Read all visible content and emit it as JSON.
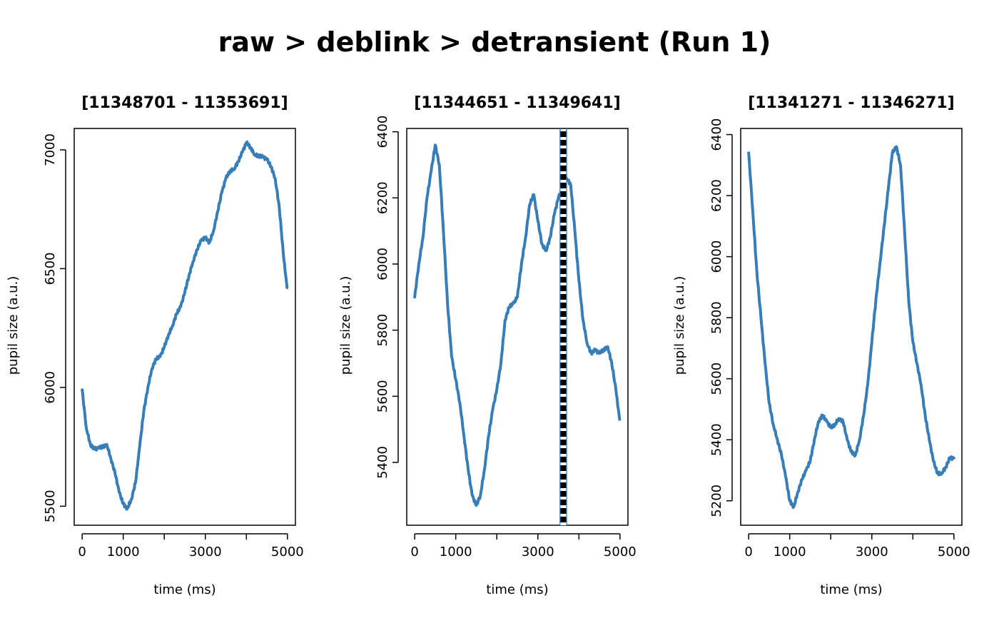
{
  "title": "raw > deblink > detransient (Run 1)",
  "colors": {
    "series": "#377EB8",
    "vline": "#000000",
    "vline_gap": "#ffffff"
  },
  "chart_data": [
    {
      "type": "line",
      "title": "[11348701 - 11353691]",
      "xlabel": "time (ms)",
      "ylabel": "pupil size (a.u.)",
      "xlim": [
        0,
        5000
      ],
      "ylim": [
        5420,
        7090
      ],
      "xticks": [
        0,
        1000,
        2000,
        3000,
        4000,
        5000
      ],
      "xtick_labels": [
        "0",
        "1000",
        "",
        "3000",
        "",
        "5000"
      ],
      "yticks": [
        5500,
        6000,
        6500,
        7000
      ],
      "ytick_labels": [
        "5500",
        "6000",
        "6500",
        "7000"
      ],
      "grid": false,
      "vlines": [],
      "series": [
        {
          "x": [
            0,
            100,
            200,
            300,
            400,
            500,
            600,
            700,
            800,
            900,
            1000,
            1100,
            1200,
            1300,
            1400,
            1500,
            1600,
            1700,
            1800,
            1900,
            2000,
            2100,
            2200,
            2300,
            2400,
            2500,
            2600,
            2700,
            2800,
            2900,
            3000,
            3100,
            3200,
            3300,
            3400,
            3500,
            3600,
            3700,
            3800,
            3900,
            4000,
            4100,
            4200,
            4300,
            4400,
            4500,
            4600,
            4700,
            4800,
            4900,
            4990
          ],
          "y": [
            5990,
            5830,
            5760,
            5740,
            5745,
            5750,
            5760,
            5700,
            5640,
            5560,
            5510,
            5490,
            5530,
            5600,
            5750,
            5900,
            6000,
            6080,
            6120,
            6130,
            6170,
            6220,
            6260,
            6310,
            6340,
            6400,
            6470,
            6530,
            6580,
            6620,
            6630,
            6610,
            6660,
            6740,
            6820,
            6880,
            6910,
            6920,
            6950,
            6990,
            7030,
            7010,
            6980,
            6975,
            6970,
            6960,
            6930,
            6880,
            6760,
            6560,
            6420
          ]
        }
      ]
    },
    {
      "type": "line",
      "title": "[11344651 - 11349641]",
      "xlabel": "time (ms)",
      "ylabel": "pupil size (a.u.)",
      "xlim": [
        0,
        5000
      ],
      "ylim": [
        5210,
        6410
      ],
      "xticks": [
        0,
        1000,
        2000,
        3000,
        4000,
        5000
      ],
      "xtick_labels": [
        "0",
        "1000",
        "",
        "3000",
        "",
        "5000"
      ],
      "yticks": [
        5400,
        5600,
        5800,
        6000,
        6200,
        6400
      ],
      "ytick_labels": [
        "5400",
        "5600",
        "5800",
        "6000",
        "6200",
        "6400"
      ],
      "grid": false,
      "vlines": [
        3620
      ],
      "series": [
        {
          "x": [
            0,
            100,
            200,
            300,
            400,
            500,
            600,
            700,
            800,
            900,
            1000,
            1100,
            1200,
            1300,
            1400,
            1500,
            1600,
            1700,
            1800,
            1900,
            2000,
            2100,
            2200,
            2300,
            2400,
            2500,
            2600,
            2700,
            2800,
            2900,
            3000,
            3100,
            3200,
            3300,
            3400,
            3500,
            3600,
            3700,
            3800,
            3900,
            4000,
            4100,
            4200,
            4300,
            4400,
            4500,
            4600,
            4700,
            4800,
            4900,
            4990
          ],
          "y": [
            5900,
            6000,
            6080,
            6200,
            6280,
            6360,
            6300,
            6100,
            5880,
            5720,
            5650,
            5580,
            5480,
            5380,
            5300,
            5270,
            5300,
            5380,
            5480,
            5560,
            5620,
            5700,
            5830,
            5870,
            5880,
            5900,
            6000,
            6080,
            6180,
            6210,
            6130,
            6060,
            6040,
            6080,
            6150,
            6200,
            6230,
            6260,
            6240,
            6100,
            5950,
            5830,
            5760,
            5730,
            5740,
            5730,
            5740,
            5750,
            5700,
            5620,
            5530
          ]
        }
      ]
    },
    {
      "type": "line",
      "title": "[11341271 - 11346271]",
      "xlabel": "time (ms)",
      "ylabel": "pupil size (a.u.)",
      "xlim": [
        0,
        5000
      ],
      "ylim": [
        5120,
        6420
      ],
      "xticks": [
        0,
        1000,
        2000,
        3000,
        4000,
        5000
      ],
      "xtick_labels": [
        "0",
        "1000",
        "",
        "3000",
        "",
        "5000"
      ],
      "yticks": [
        5200,
        5400,
        5600,
        5800,
        6000,
        6200,
        6400
      ],
      "ytick_labels": [
        "5200",
        "5400",
        "5600",
        "5800",
        "6000",
        "6200",
        "6400"
      ],
      "grid": false,
      "vlines": [],
      "series": [
        {
          "x": [
            0,
            100,
            200,
            300,
            400,
            500,
            600,
            700,
            800,
            900,
            1000,
            1100,
            1200,
            1300,
            1400,
            1500,
            1600,
            1700,
            1800,
            1900,
            2000,
            2100,
            2200,
            2300,
            2400,
            2500,
            2600,
            2700,
            2800,
            2900,
            3000,
            3100,
            3200,
            3300,
            3400,
            3500,
            3600,
            3700,
            3800,
            3900,
            4000,
            4100,
            4200,
            4300,
            4400,
            4500,
            4600,
            4700,
            4800,
            4900,
            5000
          ],
          "y": [
            6340,
            6150,
            5950,
            5800,
            5650,
            5520,
            5450,
            5400,
            5350,
            5280,
            5200,
            5180,
            5230,
            5270,
            5300,
            5330,
            5400,
            5460,
            5480,
            5460,
            5440,
            5450,
            5470,
            5460,
            5400,
            5360,
            5350,
            5400,
            5480,
            5580,
            5720,
            5860,
            5980,
            6100,
            6220,
            6340,
            6360,
            6300,
            6080,
            5850,
            5720,
            5650,
            5580,
            5480,
            5400,
            5330,
            5290,
            5290,
            5310,
            5340,
            5340
          ]
        }
      ]
    }
  ]
}
